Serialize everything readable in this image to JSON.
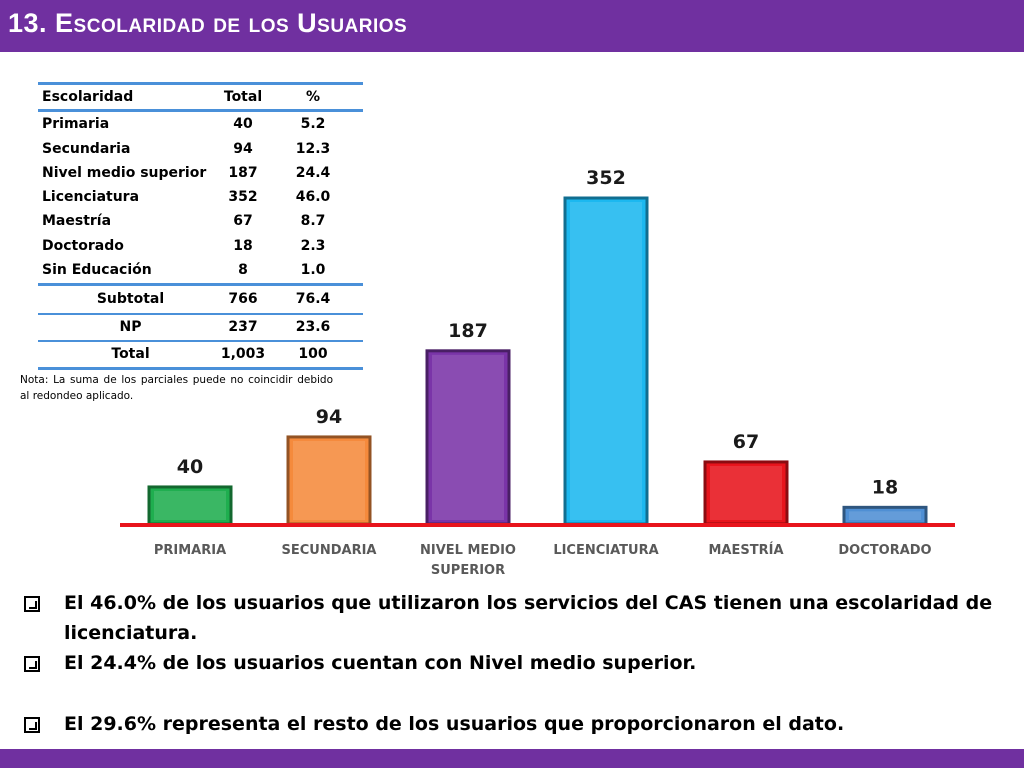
{
  "header": {
    "title": "13. Escolaridad de los Usuarios"
  },
  "table": {
    "headers": [
      "Escolaridad",
      "Total",
      "%"
    ],
    "rows": [
      [
        "Primaria",
        "40",
        "5.2"
      ],
      [
        "Secundaria",
        "94",
        "12.3"
      ],
      [
        "Nivel medio superior",
        "187",
        "24.4"
      ],
      [
        "Licenciatura",
        "352",
        "46.0"
      ],
      [
        "Maestría",
        "67",
        "8.7"
      ],
      [
        "Doctorado",
        "18",
        "2.3"
      ],
      [
        "Sin Educación",
        "8",
        "1.0"
      ]
    ],
    "subtotal": [
      "Subtotal",
      "766",
      "76.4"
    ],
    "np": [
      "NP",
      "237",
      "23.6"
    ],
    "total": [
      "Total",
      "1,003",
      "100"
    ],
    "note": "Nota: La suma de los parciales puede no coincidir debido al redondeo aplicado."
  },
  "chart_data": {
    "type": "bar",
    "categories": [
      "PRIMARIA",
      "SECUNDARIA",
      "NIVEL MEDIO SUPERIOR",
      "LICENCIATURA",
      "MAESTRÍA",
      "DOCTORADO"
    ],
    "category_lines": [
      [
        "PRIMARIA"
      ],
      [
        "SECUNDARIA"
      ],
      [
        "NIVEL MEDIO",
        "SUPERIOR"
      ],
      [
        "LICENCIATURA"
      ],
      [
        "MAESTRÍA"
      ],
      [
        "DOCTORADO"
      ]
    ],
    "values": [
      40,
      94,
      187,
      352,
      67,
      18
    ],
    "colors": [
      "#1fae4f",
      "#f58a3c",
      "#7a34a8",
      "#1cb8f0",
      "#e8141c",
      "#4f8fd4"
    ],
    "axis_color": "#e8141c",
    "title": "",
    "xlabel": "",
    "ylabel": "",
    "grid": false
  },
  "bullets": [
    "El 46.0% de los usuarios que utilizaron los servicios del CAS tienen una escolaridad de licenciatura.",
    "El 24.4% de los usuarios cuentan con Nivel medio superior.",
    "El  29.6% representa el resto de los usuarios que proporcionaron el dato."
  ]
}
